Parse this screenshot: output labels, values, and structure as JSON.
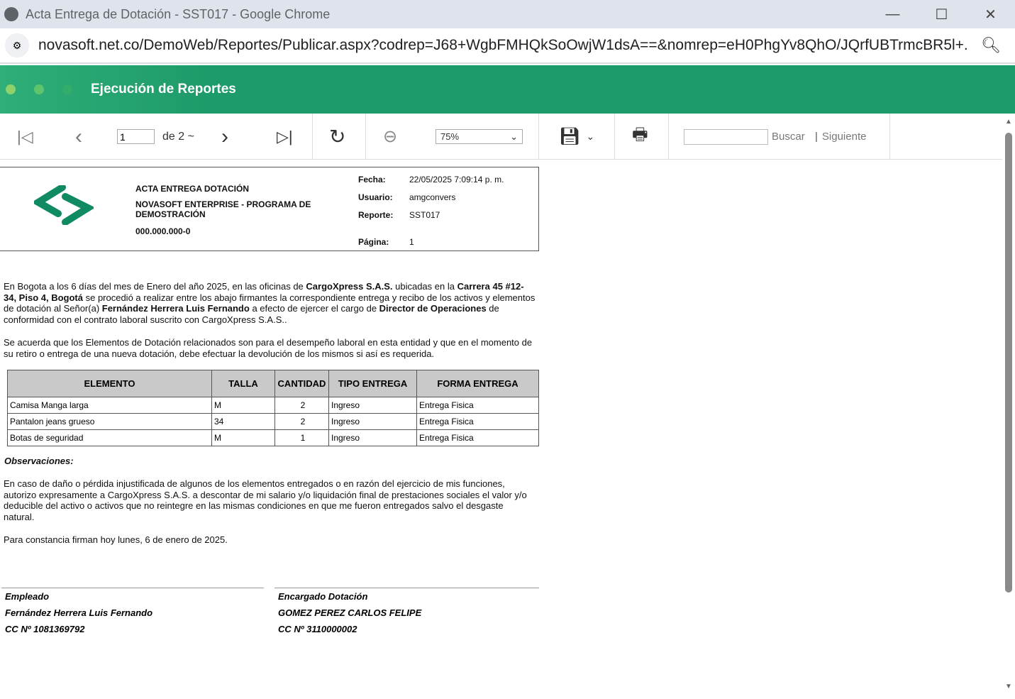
{
  "window": {
    "title": "Acta Entrega de Dotación - SST017 - Google Chrome",
    "url": "novasoft.net.co/DemoWeb/Reportes/Publicar.aspx?codrep=J68+WgbFMHQkSoOwjW1dsA==&nomrep=eH0PhgYv8QhO/JQrfUBTrmcBR5l+..."
  },
  "app": {
    "title": "Ejecución de Reportes",
    "accent": "#1e9b6a"
  },
  "toolbar": {
    "page": "1",
    "of_pages": "de 2 ~",
    "zoom": "75%",
    "search_placeholder": "",
    "search_label": "Buscar",
    "next_label": "Siguiente"
  },
  "report": {
    "title": "ACTA ENTREGA DOTACIÓN",
    "company": "NOVASOFT ENTERPRISE - PROGRAMA DE DEMOSTRACIÓN",
    "nit": "000.000.000-0",
    "meta": [
      {
        "label": "Fecha:",
        "value": "22/05/2025 7:09:14 p. m."
      },
      {
        "label": "Usuario:",
        "value": "amgconvers"
      },
      {
        "label": "Reporte:",
        "value": "SST017"
      },
      {
        "label": "Página:",
        "value": "1"
      }
    ],
    "intro": [
      "En Bogota a los 6 días del mes de Enero del año 2025, en las oficinas de ",
      "CargoXpress S.A.S.",
      " ubicadas en la ",
      "Carrera 45 #12-34, Piso 4, Bogotá",
      " se procedió a realizar entre los abajo firmantes la correspondiente entrega y recibo de los activos y elementos de dotación al Señor(a) ",
      "Fernández Herrera Luis Fernando",
      " a efecto de ejercer el cargo de  ",
      "Director de Operaciones",
      " de conformidad con el contrato laboral suscrito con CargoXpress S.A.S.."
    ],
    "agreement": "Se acuerda que los Elementos de Dotación relacionados son para el desempeño laboral en esta entidad y que en el momento de su retiro o entrega de una nueva dotación, debe efectuar la devolución de los mismos si así es requerida.",
    "columns": [
      "ELEMENTO",
      "TALLA",
      "CANTIDAD",
      "TIPO ENTREGA",
      "FORMA ENTREGA"
    ],
    "rows": [
      [
        "Camisa Manga larga",
        "M",
        "2",
        "Ingreso",
        "Entrega Fisica"
      ],
      [
        "Pantalon jeans grueso",
        "34",
        "2",
        "Ingreso",
        "Entrega Fisica"
      ],
      [
        "Botas de seguridad",
        "M",
        "1",
        "Ingreso",
        "Entrega Fisica"
      ]
    ],
    "obs_label": "Observaciones:",
    "obs": "En caso de daño o pérdida injustificada de algunos de los elementos entregados o en razón del ejercicio de mis funciones, autorizo expresamente a CargoXpress S.A.S. a descontar de mi salario y/o liquidación final de prestaciones sociales el valor y/o deducible del activo o activos que no reintegre en las mismas condiciones en que me fueron entregados salvo el desgaste natural.",
    "closing": "Para constancia firman hoy lunes, 6 de enero de 2025.",
    "signatures": [
      [
        "Empleado",
        "Fernández Herrera Luis Fernando",
        "CC Nº 1081369792"
      ],
      [
        "Encargado Dotación",
        "GOMEZ PEREZ CARLOS FELIPE",
        "CC Nº 3110000002"
      ]
    ]
  }
}
